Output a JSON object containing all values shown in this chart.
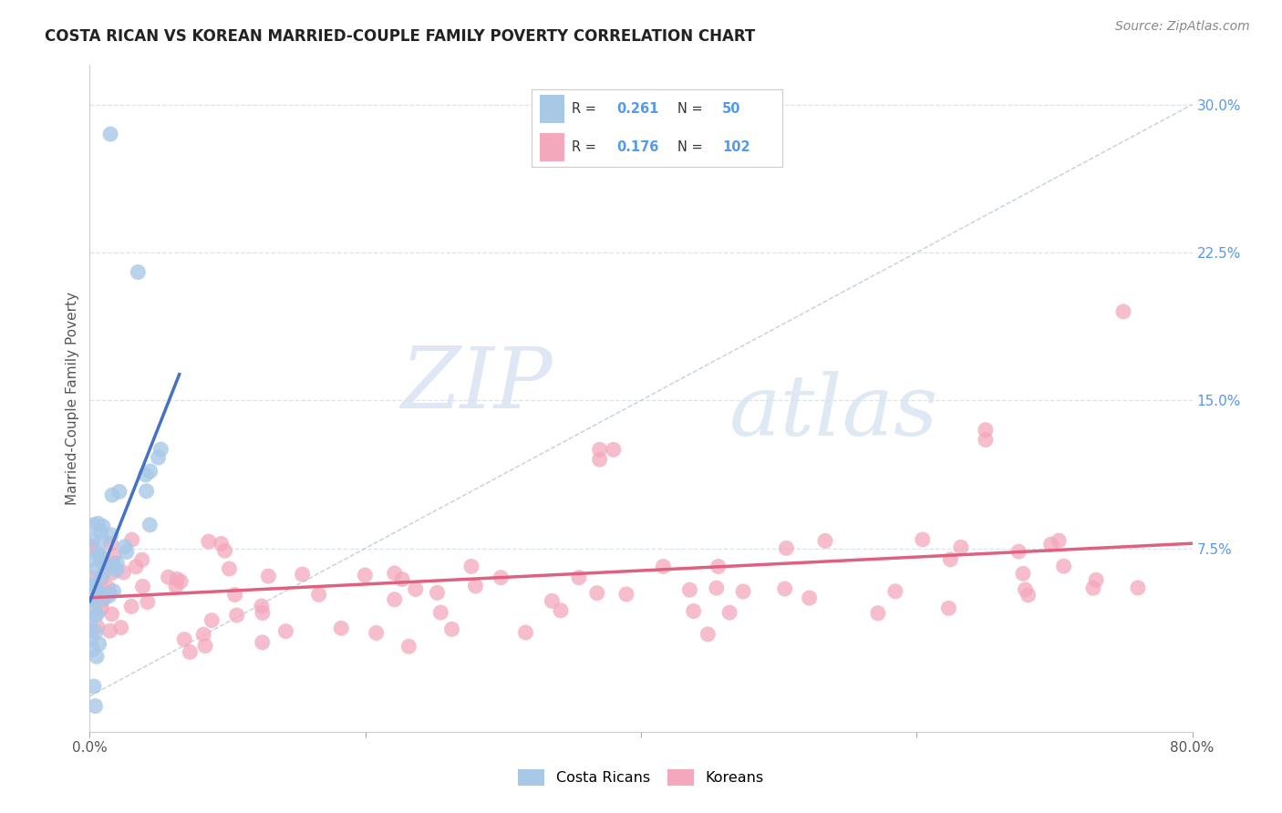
{
  "title": "COSTA RICAN VS KOREAN MARRIED-COUPLE FAMILY POVERTY CORRELATION CHART",
  "source": "Source: ZipAtlas.com",
  "ylabel": "Married-Couple Family Poverty",
  "xlim": [
    0.0,
    0.8
  ],
  "ylim": [
    -0.018,
    0.32
  ],
  "watermark_zip": "ZIP",
  "watermark_atlas": "atlas",
  "legend_cr_R": "0.261",
  "legend_cr_N": "50",
  "legend_ko_R": "0.176",
  "legend_ko_N": "102",
  "cr_color": "#a8c8e8",
  "ko_color": "#f4a8bc",
  "cr_line_color": "#4472c4",
  "ko_line_color": "#e06080",
  "diagonal_color": "#b8c8d8",
  "grid_color": "#d8e4f0",
  "background_color": "#ffffff",
  "title_fontsize": 12,
  "source_fontsize": 10,
  "tick_fontsize": 11,
  "right_tick_color": "#5599ee"
}
